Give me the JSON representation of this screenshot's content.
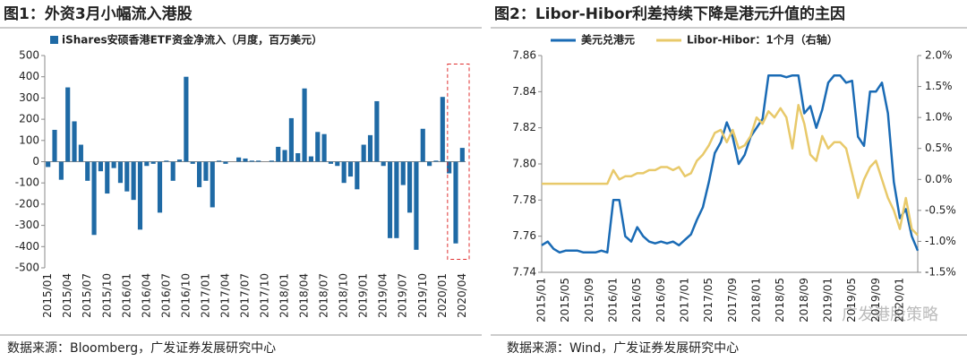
{
  "chart_data": [
    {
      "type": "bar",
      "title": "图1：外资3月小幅流入港股",
      "source": "数据来源：Bloomberg，广发证券发展研究中心",
      "series": [
        {
          "name": "iShares安硕香港ETF资金净流入（月度，百万美元）",
          "color": "#1f6aa5",
          "values": [
            -25,
            150,
            -85,
            350,
            190,
            80,
            -90,
            -345,
            -45,
            -150,
            -30,
            -100,
            -140,
            -180,
            -320,
            -20,
            -10,
            -240,
            5,
            -90,
            10,
            400,
            -10,
            -120,
            -90,
            -215,
            5,
            -10,
            0,
            20,
            15,
            5,
            5,
            0,
            5,
            70,
            55,
            205,
            40,
            345,
            25,
            140,
            130,
            -10,
            -20,
            -100,
            -70,
            -130,
            80,
            125,
            285,
            -20,
            -360,
            -360,
            -110,
            -240,
            -415,
            155,
            -20,
            5,
            305,
            -55,
            -385,
            65
          ]
        }
      ],
      "categories": [
        "2015/01",
        null,
        null,
        "2015/04",
        null,
        null,
        "2015/07",
        null,
        null,
        "2015/10",
        null,
        null,
        "2016/01",
        null,
        null,
        "2016/04",
        null,
        null,
        "2016/07",
        null,
        null,
        "2016/10",
        null,
        null,
        "2017/01",
        null,
        null,
        "2017/04",
        null,
        null,
        "2017/07",
        null,
        null,
        "2017/10",
        null,
        null,
        "2018/01",
        null,
        null,
        "2018/04",
        null,
        null,
        "2018/07",
        null,
        null,
        "2018/10",
        null,
        null,
        "2019/01",
        null,
        null,
        "2019/04",
        null,
        null,
        "2019/07",
        null,
        null,
        "2019/10",
        null,
        null,
        "2020/01",
        null,
        null,
        "2020/04"
      ],
      "ylim": [
        -500,
        500
      ],
      "yticks": [
        -500,
        -400,
        -300,
        -200,
        -100,
        0,
        100,
        200,
        300,
        400,
        500
      ],
      "grid": false,
      "legend": "top-left"
    },
    {
      "type": "line",
      "title": "图2：Libor-Hibor利差持续下降是港元升值的主因",
      "source": "数据来源：Wind，广发证券发展研究中心",
      "categories": [
        "2015/01",
        null,
        null,
        null,
        "2015/05",
        null,
        null,
        null,
        "2015/09",
        null,
        null,
        null,
        "2016/01",
        null,
        null,
        null,
        "2016/05",
        null,
        null,
        null,
        "2016/09",
        null,
        null,
        null,
        "2017/01",
        null,
        null,
        null,
        "2017/05",
        null,
        null,
        null,
        "2017/09",
        null,
        null,
        null,
        "2018/01",
        null,
        null,
        null,
        "2018/05",
        null,
        null,
        null,
        "2018/09",
        null,
        null,
        null,
        "2019/01",
        null,
        null,
        null,
        "2019/05",
        null,
        null,
        null,
        "2019/09",
        null,
        null,
        null,
        "2020/01",
        null,
        null,
        null
      ],
      "series": [
        {
          "name": "美元兑港元",
          "color": "#1a6bb5",
          "values": [
            7.755,
            7.757,
            7.753,
            7.751,
            7.752,
            7.752,
            7.752,
            7.751,
            7.751,
            7.751,
            7.752,
            7.751,
            7.78,
            7.78,
            7.76,
            7.757,
            7.765,
            7.76,
            7.757,
            7.756,
            7.757,
            7.756,
            7.757,
            7.755,
            7.758,
            7.761,
            7.769,
            7.776,
            7.79,
            7.806,
            7.812,
            7.823,
            7.815,
            7.8,
            7.805,
            7.815,
            7.82,
            7.825,
            7.849,
            7.849,
            7.849,
            7.848,
            7.849,
            7.849,
            7.828,
            7.832,
            7.82,
            7.83,
            7.845,
            7.849,
            7.849,
            7.845,
            7.846,
            7.815,
            7.81,
            7.84,
            7.84,
            7.845,
            7.828,
            7.79,
            7.77,
            7.775,
            7.76,
            7.752
          ]
        },
        {
          "name": "Libor-Hibor：1个月（右轴）",
          "color": "#e8c96a",
          "axis": "y2",
          "values": [
            -0.07,
            -0.07,
            -0.07,
            -0.07,
            -0.07,
            -0.07,
            -0.07,
            -0.07,
            -0.07,
            -0.07,
            -0.07,
            -0.07,
            0.15,
            0.0,
            0.05,
            0.05,
            0.1,
            0.1,
            0.15,
            0.15,
            0.2,
            0.2,
            0.15,
            0.2,
            0.05,
            0.1,
            0.3,
            0.4,
            0.55,
            0.75,
            0.8,
            0.6,
            0.8,
            0.5,
            0.55,
            0.7,
            1.0,
            0.9,
            1.1,
            1.0,
            1.15,
            1.0,
            0.5,
            1.2,
            0.9,
            0.4,
            0.3,
            0.7,
            0.5,
            0.6,
            0.6,
            0.5,
            0.1,
            -0.3,
            0.0,
            0.2,
            0.3,
            0.0,
            -0.3,
            -0.5,
            -0.8,
            -0.3,
            -0.8,
            -0.9
          ]
        }
      ],
      "ylim": [
        7.74,
        7.86
      ],
      "yticks": [
        7.74,
        7.76,
        7.78,
        {
          "value": 7.8,
          "label": "7.80"
        },
        7.82,
        7.84,
        7.86
      ],
      "y2lim": [
        -1.5,
        2.0
      ],
      "y2ticks": [
        {
          "value": -1.5,
          "label": "-1.5%"
        },
        {
          "value": -1.0,
          "label": "-1.0%"
        },
        {
          "value": -0.5,
          "label": "-0.5%"
        },
        {
          "value": 0.0,
          "label": "0.0%"
        },
        {
          "value": 0.5,
          "label": "0.5%"
        },
        {
          "value": 1.0,
          "label": "1.0%"
        },
        {
          "value": 1.5,
          "label": "1.5%"
        },
        {
          "value": 2.0,
          "label": "2.0%"
        }
      ],
      "grid": false,
      "legend": "top"
    }
  ],
  "watermark": "广发港股策略"
}
